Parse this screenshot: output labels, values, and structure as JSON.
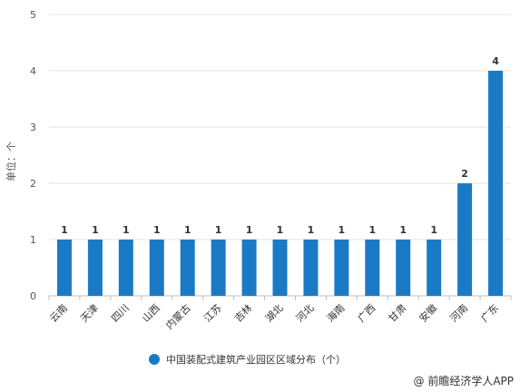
{
  "chart_data": {
    "type": "bar",
    "ylabel": "单位：个",
    "ylim": [
      0,
      5
    ],
    "yticks": [
      0,
      1,
      2,
      3,
      4,
      5
    ],
    "grid": true,
    "legend_position": "bottom",
    "categories": [
      "云南",
      "天津",
      "四川",
      "山西",
      "内蒙古",
      "江苏",
      "吉林",
      "湖北",
      "河北",
      "海南",
      "广西",
      "甘肃",
      "安徽",
      "河南",
      "广东"
    ],
    "series": [
      {
        "name": "中国装配式建筑产业园区区域分布（个）",
        "values": [
          1,
          1,
          1,
          1,
          1,
          1,
          1,
          1,
          1,
          1,
          1,
          1,
          1,
          2,
          4
        ],
        "color": "#1a7ac6"
      }
    ]
  },
  "source": "@ 前瞻经济学人APP",
  "colors": {
    "bar": "#1a7ac6",
    "grid": "#e3e3e3",
    "axis": "#bfbfbf"
  }
}
